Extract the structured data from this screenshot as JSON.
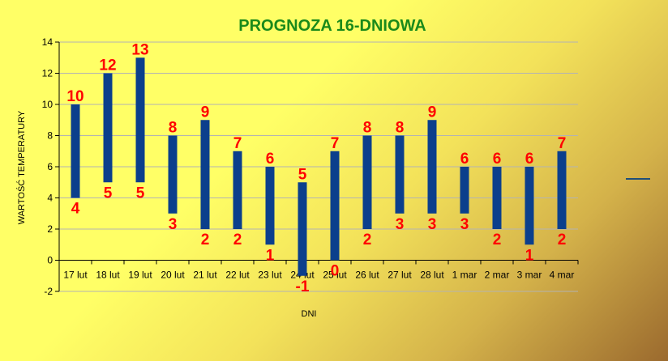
{
  "chart_data": {
    "type": "bar",
    "title": "PROGNOZA 16-DNIOWA",
    "xlabel": "DNI",
    "ylabel": "WARTOŚĆ TEMPERATURY",
    "categories": [
      "17 lut",
      "18 lut",
      "19 lut",
      "20 lut",
      "21 lut",
      "22 lut",
      "23 lut",
      "24 lut",
      "25 lut",
      "26 lut",
      "27 lut",
      "28 lut",
      "1 mar",
      "2 mar",
      "3 mar",
      "4 mar"
    ],
    "high": [
      10,
      12,
      13,
      8,
      9,
      7,
      6,
      5,
      7,
      8,
      8,
      9,
      6,
      6,
      6,
      7
    ],
    "low": [
      4,
      5,
      5,
      3,
      2,
      2,
      1,
      -1,
      0,
      2,
      3,
      3,
      3,
      2,
      1,
      2
    ],
    "ylim": [
      -2,
      14
    ],
    "yticks": [
      -2,
      0,
      2,
      4,
      6,
      8,
      10,
      12,
      14
    ],
    "grid": true,
    "legend": "right",
    "colors": {
      "bar": "#0b3f8c",
      "label": "#ff0000",
      "title": "#1a8a1a",
      "grid": "#b3b3b3",
      "legend_line": "#1f4e79"
    }
  }
}
